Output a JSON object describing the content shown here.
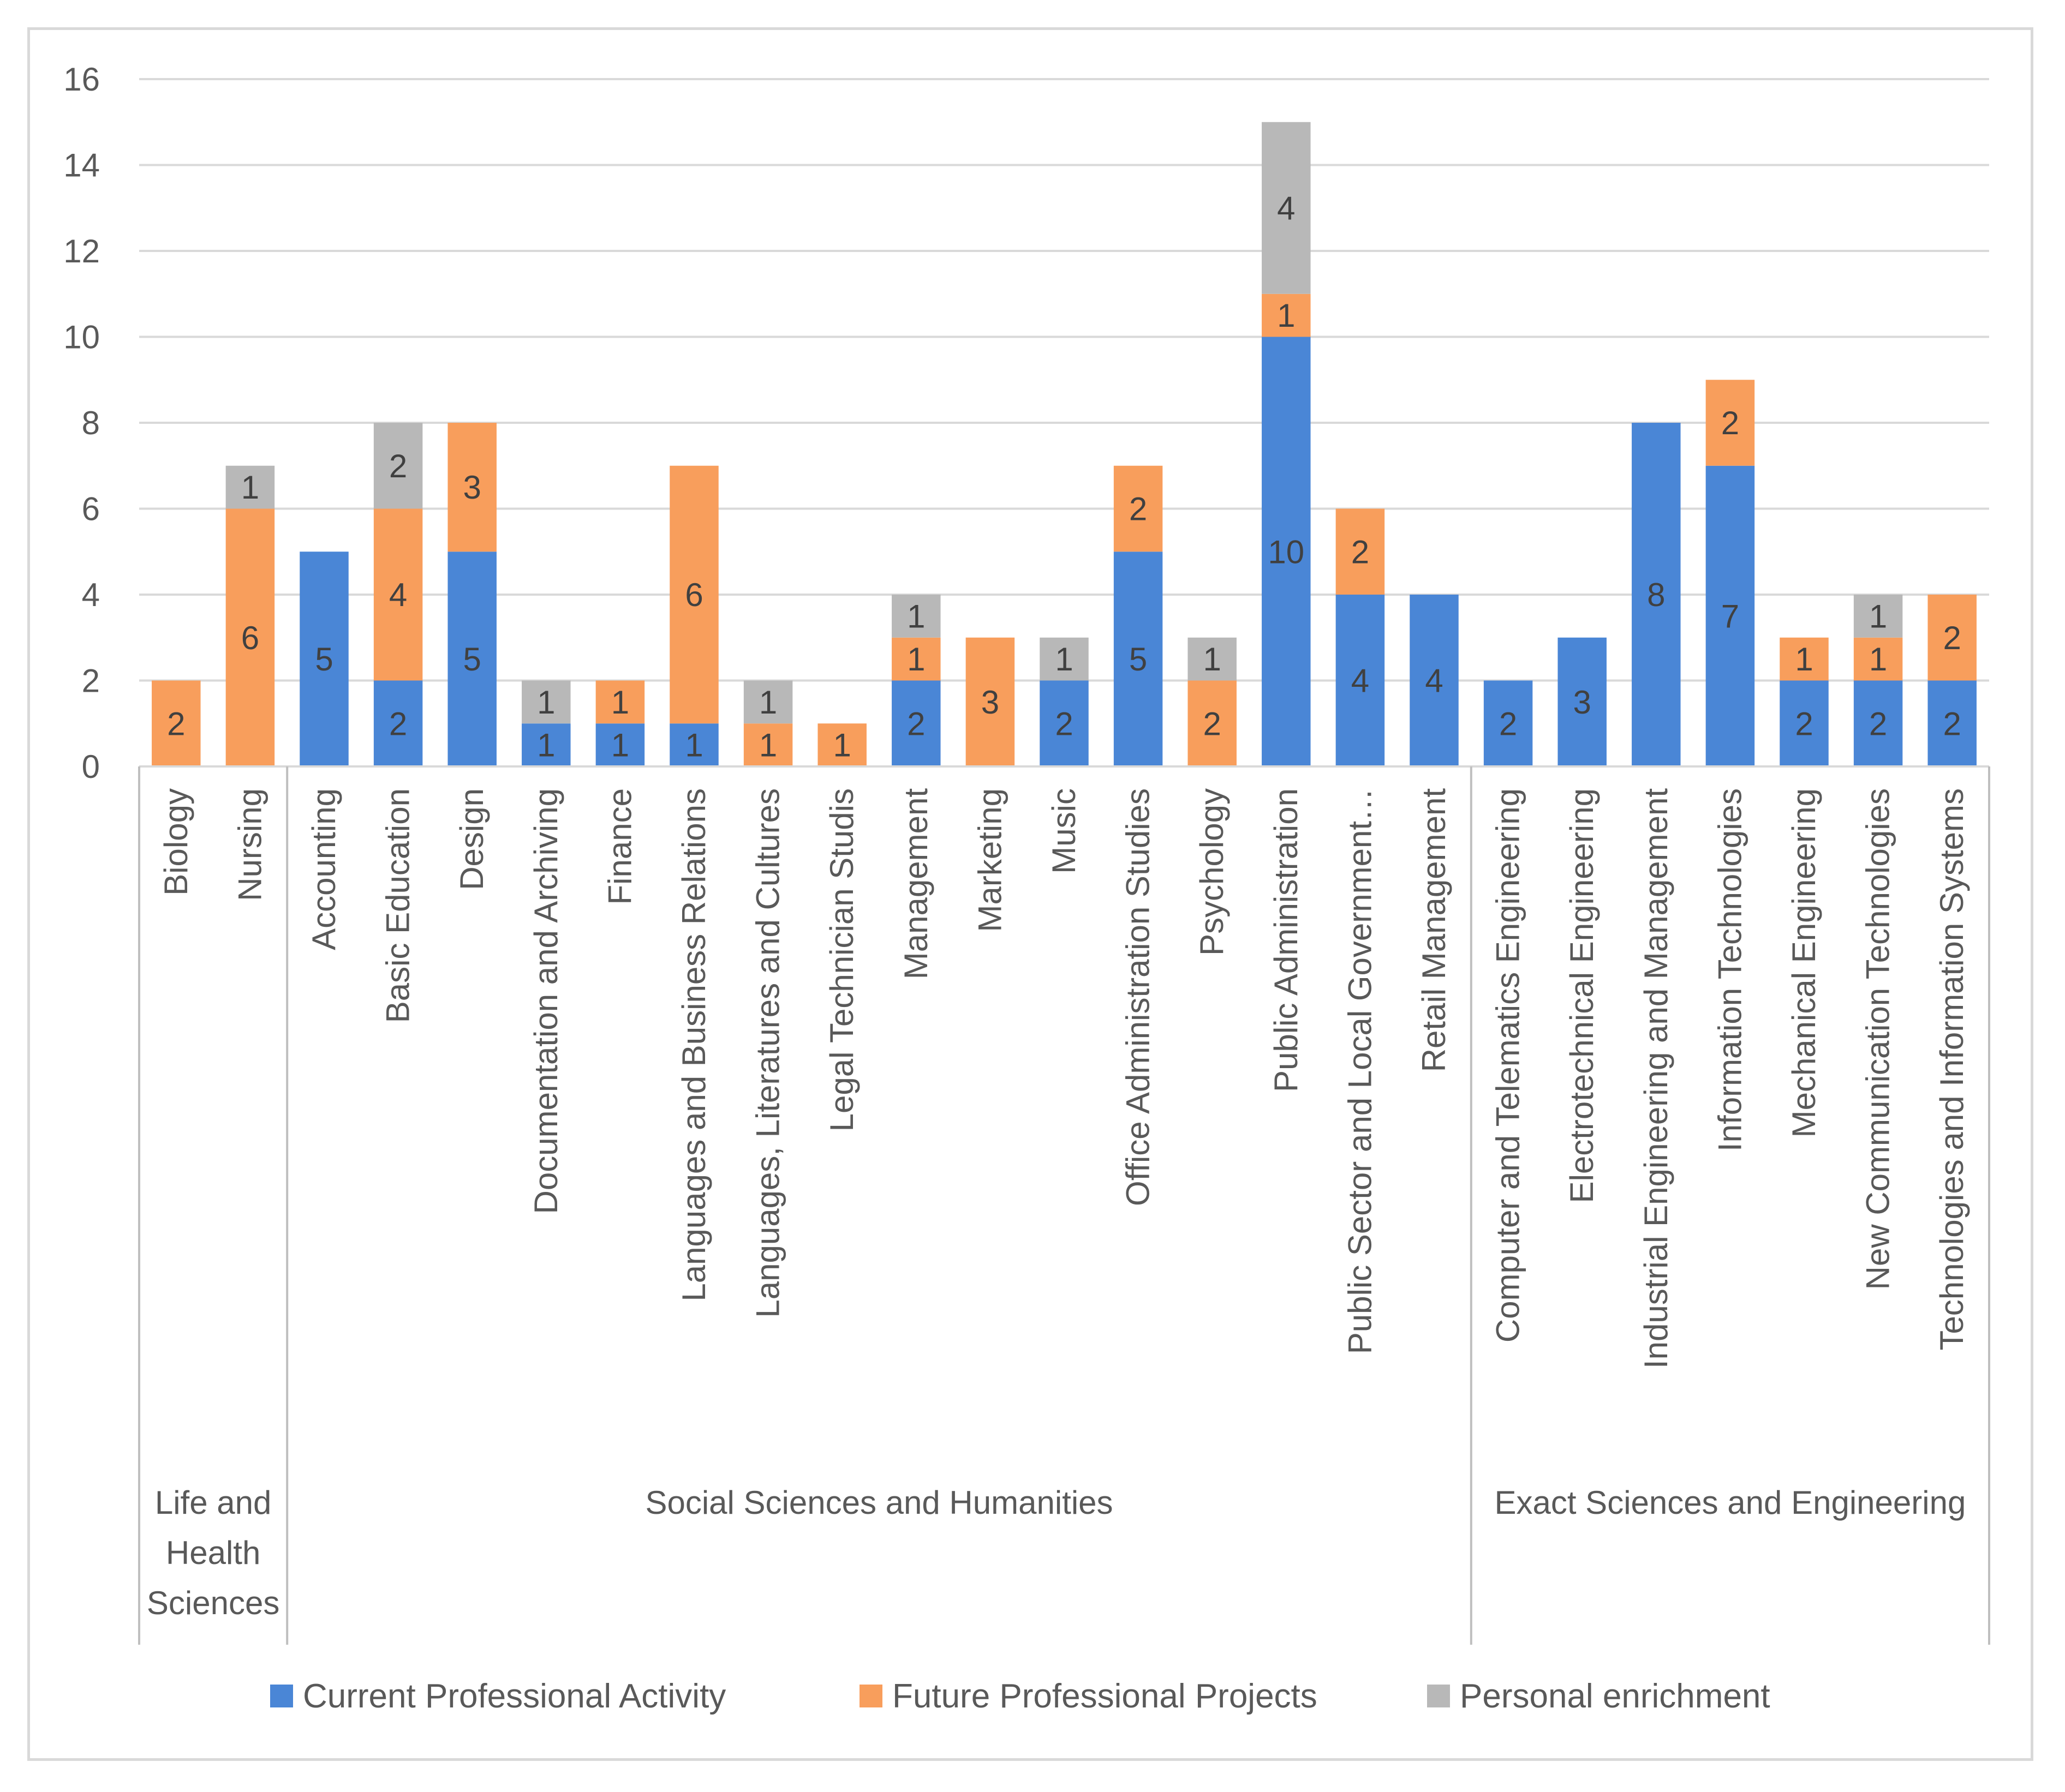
{
  "chart_data": {
    "type": "bar",
    "stacked": true,
    "ylim": [
      0,
      16
    ],
    "yticks": [
      0,
      2,
      4,
      6,
      8,
      10,
      12,
      14,
      16
    ],
    "grid": true,
    "legend_position": "bottom",
    "categories": [
      "Biology",
      "Nursing",
      "Accounting",
      "Basic Education",
      "Design",
      "Documentation and Archiving",
      "Finance",
      "Languages and Business Relations",
      "Languages, Literatures and Cultures",
      "Legal Technician Studis",
      "Management",
      "Marketing",
      "Music",
      "Office Administration Studies",
      "Psychology",
      "Public Administration",
      "Public Sector and Local Government…",
      "Retail Management",
      "Computer and Telematics Engineering",
      "Electrotechnical Engineering",
      "Industrial Engineering and Management",
      "Information Technologies",
      "Mechanical Engineering",
      "New Communication Technologies",
      "Technologies and Information Systems"
    ],
    "groups": [
      {
        "name": "Life and Health Sciences",
        "lines": [
          "Life and",
          "Health",
          "Sciences"
        ],
        "start": 0,
        "end": 1
      },
      {
        "name": "Social Sciences and Humanities",
        "lines": [
          "Social Sciences and Humanities"
        ],
        "start": 2,
        "end": 17
      },
      {
        "name": "Exact Sciences and Engineering",
        "lines": [
          "Exact Sciences and Engineering"
        ],
        "start": 18,
        "end": 24
      }
    ],
    "series": [
      {
        "name": "Current Professional Activity",
        "color": "#4a86d6",
        "values": [
          0,
          0,
          5,
          2,
          5,
          1,
          1,
          1,
          0,
          0,
          2,
          0,
          2,
          5,
          0,
          10,
          4,
          4,
          2,
          3,
          8,
          7,
          2,
          2,
          2
        ]
      },
      {
        "name": "Future Professional Projects",
        "color": "#f89e5c",
        "values": [
          2,
          6,
          0,
          4,
          3,
          0,
          1,
          6,
          1,
          1,
          1,
          3,
          0,
          2,
          2,
          1,
          2,
          0,
          0,
          0,
          0,
          2,
          1,
          1,
          2
        ]
      },
      {
        "name": "Personal enrichment",
        "color": "#b8b8b8",
        "values": [
          0,
          1,
          0,
          2,
          0,
          1,
          0,
          0,
          1,
          0,
          1,
          0,
          1,
          0,
          1,
          4,
          0,
          0,
          0,
          0,
          0,
          0,
          0,
          1,
          0
        ]
      }
    ]
  }
}
